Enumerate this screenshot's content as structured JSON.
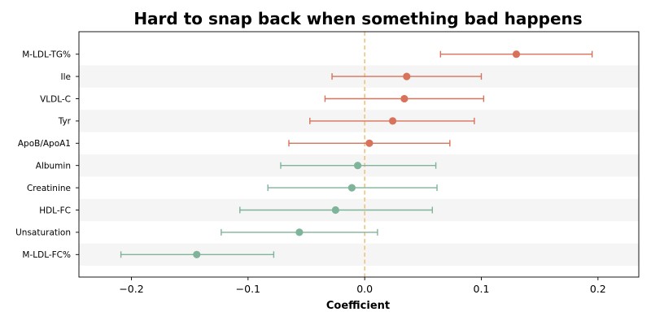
{
  "chart_data": {
    "type": "forest",
    "title": "Hard to snap back when something bad happens",
    "xlabel": "Coefficient",
    "ylabel": "",
    "xlim": [
      -0.245,
      0.235
    ],
    "xticks": [
      {
        "value": -0.2,
        "label": "−0.2"
      },
      {
        "value": -0.1,
        "label": "−0.1"
      },
      {
        "value": 0.0,
        "label": "0.0"
      },
      {
        "value": 0.1,
        "label": "0.1"
      },
      {
        "value": 0.2,
        "label": "0.2"
      }
    ],
    "reference_line": 0.0,
    "reference_line_color": "#f2c27a",
    "positive_color": "#d9725a",
    "negative_color": "#7fb49a",
    "band_color": "#f5f5f5",
    "items": [
      {
        "label": "M-LDL-TG%",
        "coef": 0.13,
        "lower": 0.065,
        "upper": 0.195
      },
      {
        "label": "Ile",
        "coef": 0.036,
        "lower": -0.028,
        "upper": 0.1
      },
      {
        "label": "VLDL-C",
        "coef": 0.034,
        "lower": -0.034,
        "upper": 0.102
      },
      {
        "label": "Tyr",
        "coef": 0.024,
        "lower": -0.047,
        "upper": 0.094
      },
      {
        "label": "ApoB/ApoA1",
        "coef": 0.004,
        "lower": -0.065,
        "upper": 0.073
      },
      {
        "label": "Albumin",
        "coef": -0.006,
        "lower": -0.072,
        "upper": 0.061
      },
      {
        "label": "Creatinine",
        "coef": -0.011,
        "lower": -0.083,
        "upper": 0.062
      },
      {
        "label": "HDL-FC",
        "coef": -0.025,
        "lower": -0.107,
        "upper": 0.058
      },
      {
        "label": "Unsaturation",
        "coef": -0.056,
        "lower": -0.123,
        "upper": 0.011
      },
      {
        "label": "M-LDL-FC%",
        "coef": -0.144,
        "lower": -0.209,
        "upper": -0.078
      }
    ]
  }
}
